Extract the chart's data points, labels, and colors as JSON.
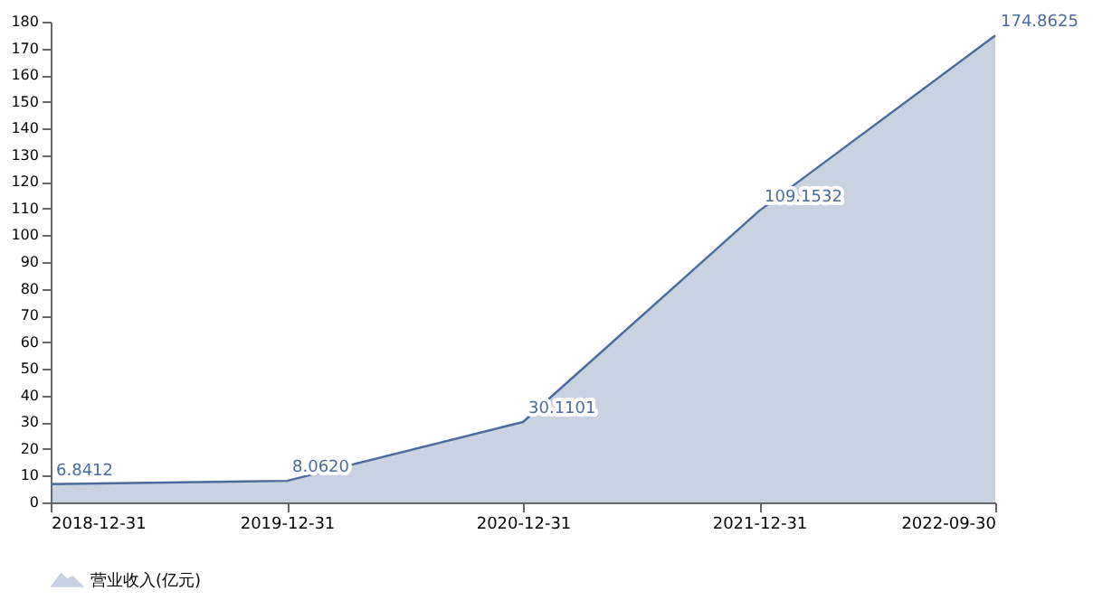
{
  "chart_data": {
    "type": "area",
    "categories": [
      "2018-12-31",
      "2019-12-31",
      "2020-12-31",
      "2021-12-31",
      "2022-09-30"
    ],
    "series": [
      {
        "name": "营业收入(亿元)",
        "color": "#4a6b9d",
        "values": [
          6.8412,
          8.062,
          30.1101,
          109.1532,
          174.8625
        ],
        "value_labels": [
          "6.8412",
          "8.0620",
          "30.1101",
          "109.1532",
          "174.8625"
        ]
      }
    ],
    "ylim": [
      0,
      180
    ],
    "yticks": [
      0,
      10,
      20,
      30,
      40,
      50,
      60,
      70,
      80,
      90,
      100,
      110,
      120,
      130,
      140,
      150,
      160,
      170,
      180
    ],
    "grid": false,
    "legend": "bottom"
  }
}
